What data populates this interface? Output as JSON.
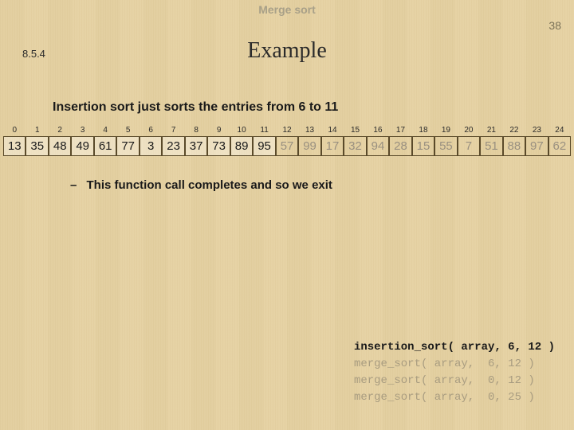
{
  "header": {
    "topic": "Merge sort",
    "page_number": "38",
    "section_number": "8.5.4",
    "title": "Example"
  },
  "body": {
    "statement": "Insertion sort just sorts the entries from 6 to 11",
    "bullet": "This function call completes and so we exit"
  },
  "array": {
    "indices": [
      "0",
      "1",
      "2",
      "3",
      "4",
      "5",
      "6",
      "7",
      "8",
      "9",
      "10",
      "11",
      "12",
      "13",
      "14",
      "15",
      "16",
      "17",
      "18",
      "19",
      "20",
      "21",
      "22",
      "23",
      "24"
    ],
    "values": [
      "13",
      "35",
      "48",
      "49",
      "61",
      "77",
      "3",
      "23",
      "37",
      "73",
      "89",
      "95",
      "57",
      "99",
      "17",
      "32",
      "94",
      "28",
      "15",
      "55",
      "7",
      "51",
      "88",
      "97",
      "62"
    ],
    "styling": {
      "sorted_range": [
        0,
        11
      ],
      "greyed_range": [
        12,
        24
      ],
      "border_color": "#5a4a2a",
      "sorted_bg": "rgba(255,255,255,0.35)",
      "greyed_text_color": "#999080",
      "normal_text_color": "#1a1a1a",
      "font_size": 15
    }
  },
  "code": {
    "font_family": "Consolas",
    "font_size": 14,
    "active_color": "#1a1a1a",
    "inactive_color": "#a89c80",
    "lines": [
      {
        "text": "insertion_sort( array, 6, 12 )",
        "active": true
      },
      {
        "text": "merge_sort( array,  6, 12 )",
        "active": false
      },
      {
        "text": "merge_sort( array,  0, 12 )",
        "active": false
      },
      {
        "text": "merge_sort( array,  0, 25 )",
        "active": false
      }
    ]
  },
  "theme": {
    "background_base": "#e8d5a8",
    "title_font": "Times New Roman",
    "body_font": "Arial"
  }
}
